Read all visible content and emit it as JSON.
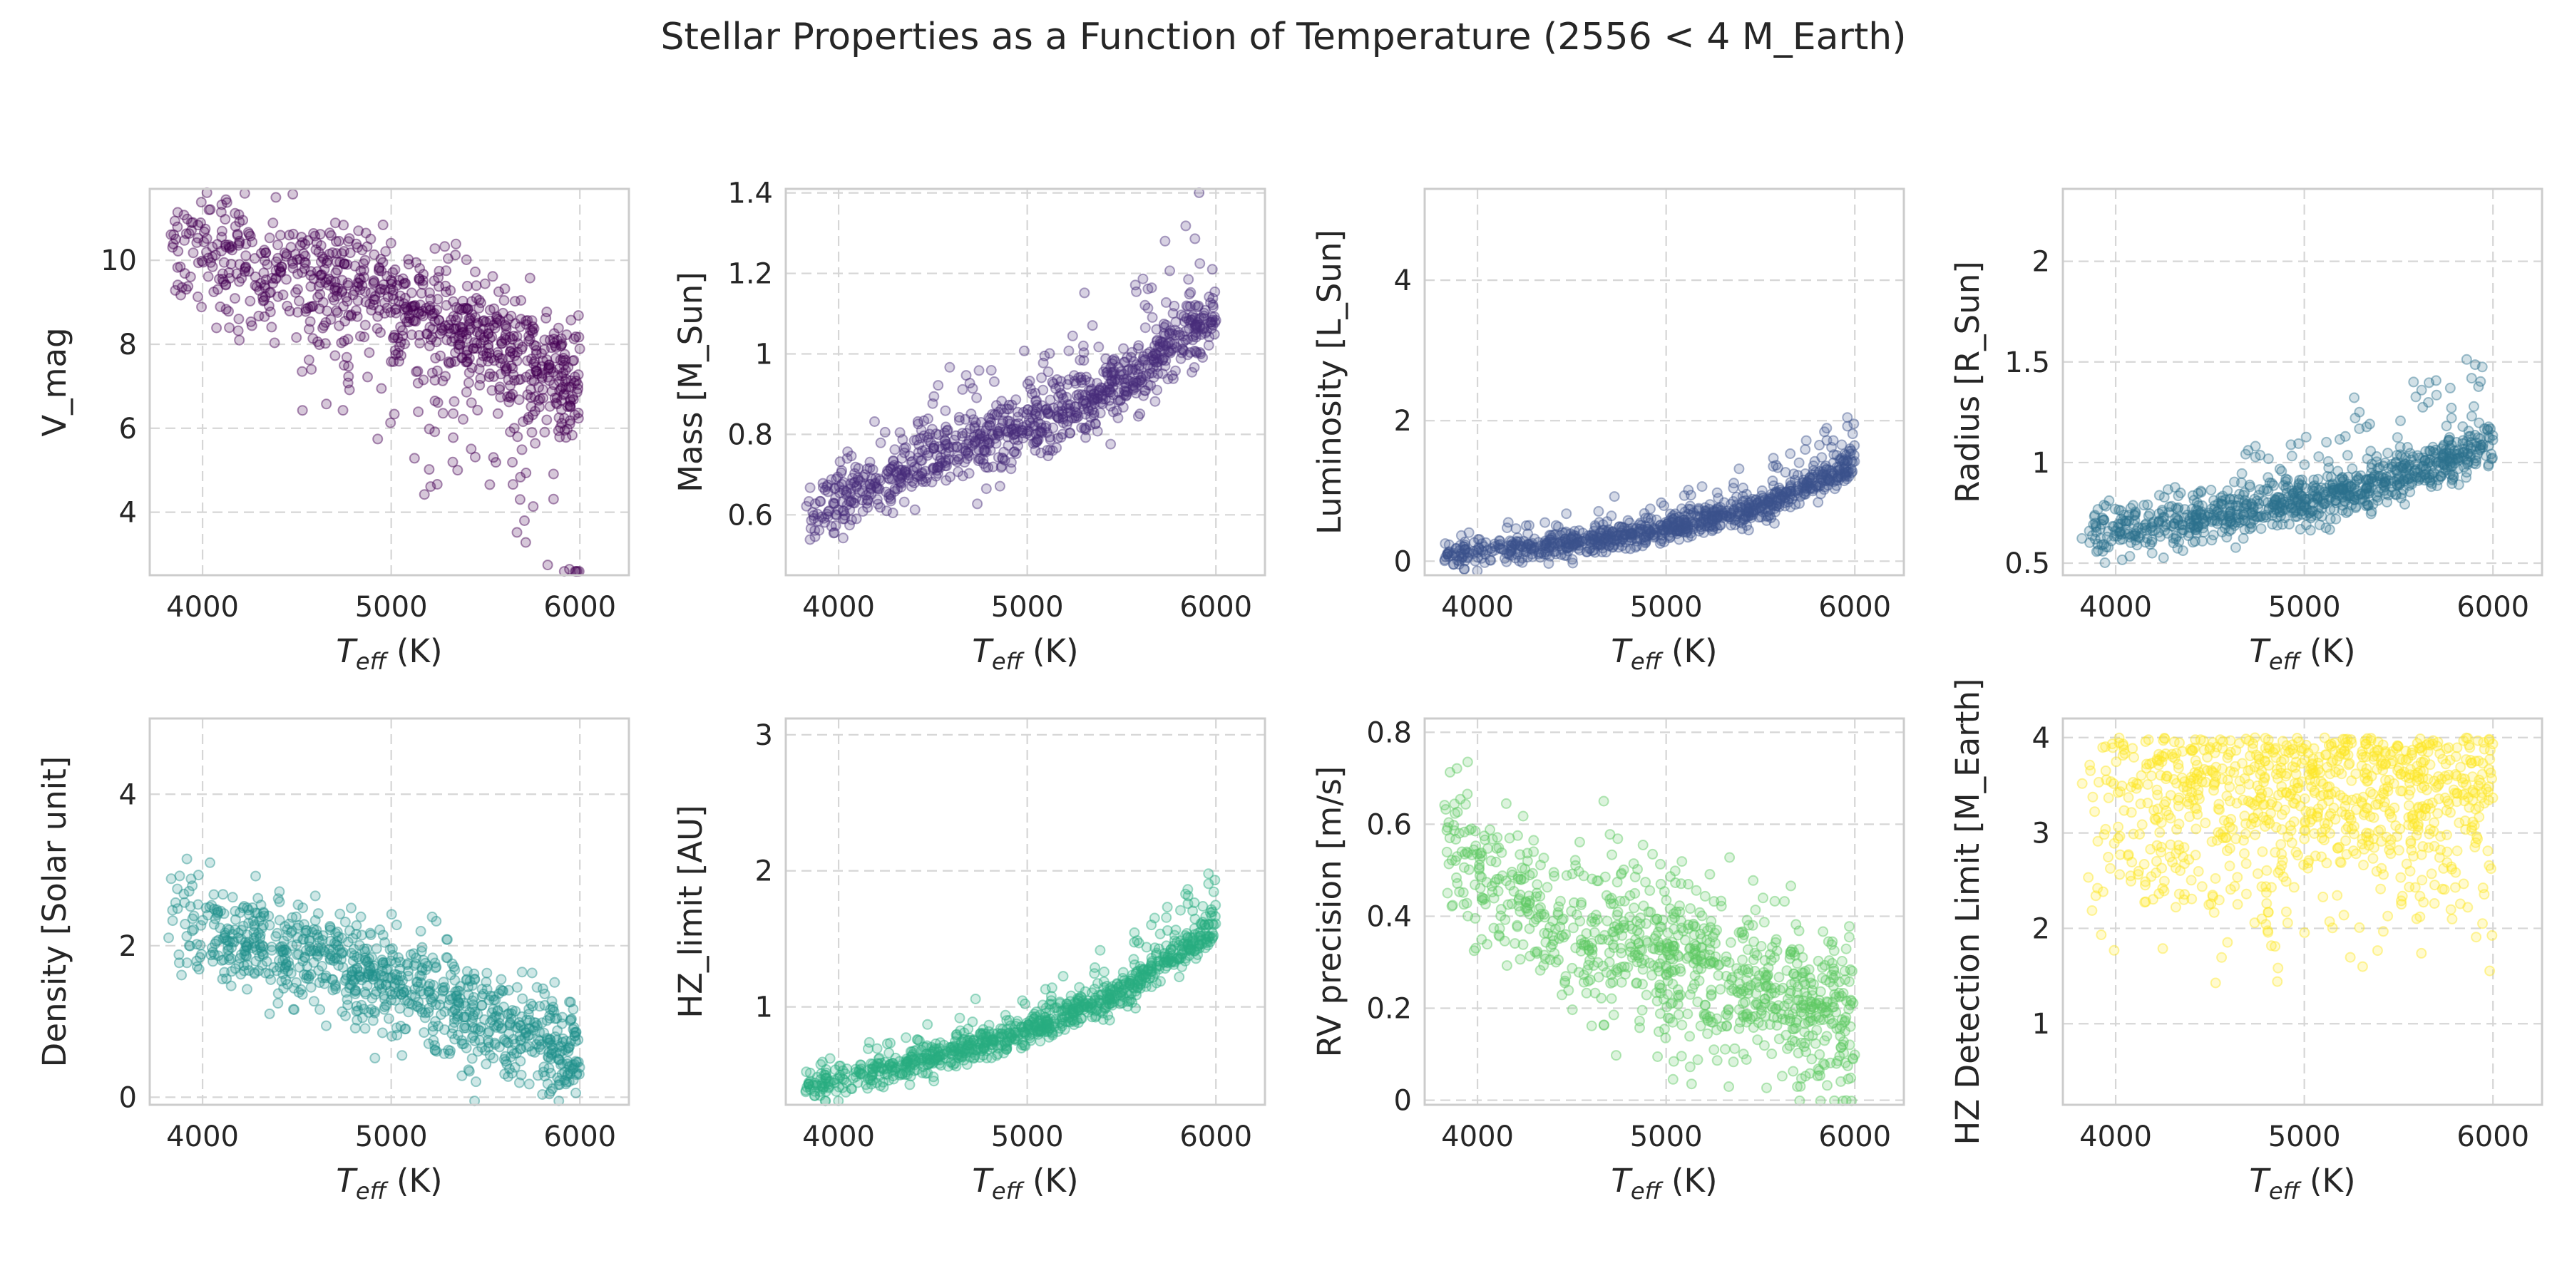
{
  "title": "Stellar Properties as a Function of Temperature (2556 < 4 M_Earth)",
  "chart_data": [
    {
      "type": "scatter",
      "xlabel": "T_eff (K)",
      "ylabel": "V_mag",
      "xlim": [
        3720,
        6260
      ],
      "ylim": [
        2.5,
        11.7
      ],
      "xticks": [
        4000,
        5000,
        6000
      ],
      "yticks": [
        4,
        6,
        8,
        10
      ],
      "color": "#440154",
      "trend": [
        [
          3820,
          10.6
        ],
        [
          4000,
          10.2
        ],
        [
          4500,
          9.7
        ],
        [
          5000,
          9.0
        ],
        [
          5500,
          8.2
        ],
        [
          6000,
          7.0
        ]
      ],
      "spread": 0.7,
      "outlier_dir": -1
    },
    {
      "type": "scatter",
      "xlabel": "T_eff (K)",
      "ylabel": "Mass [M_Sun]",
      "xlim": [
        3720,
        6260
      ],
      "ylim": [
        0.45,
        1.41
      ],
      "xticks": [
        4000,
        5000,
        6000
      ],
      "yticks": [
        0.6,
        0.8,
        1.0,
        1.2,
        1.4
      ],
      "color": "#472d7b",
      "trend": [
        [
          3820,
          0.58
        ],
        [
          4000,
          0.63
        ],
        [
          4500,
          0.74
        ],
        [
          5000,
          0.82
        ],
        [
          5500,
          0.92
        ],
        [
          6000,
          1.1
        ]
      ],
      "spread": 0.04,
      "outlier_dir": 1
    },
    {
      "type": "scatter",
      "xlabel": "T_eff (K)",
      "ylabel": "Luminosity [L_Sun]",
      "xlim": [
        3720,
        6260
      ],
      "ylim": [
        -0.2,
        5.3
      ],
      "xticks": [
        4000,
        5000,
        6000
      ],
      "yticks": [
        0,
        2,
        4
      ],
      "color": "#3b528b",
      "trend": [
        [
          3820,
          0.08
        ],
        [
          4000,
          0.12
        ],
        [
          4500,
          0.25
        ],
        [
          5000,
          0.45
        ],
        [
          5500,
          0.75
        ],
        [
          6000,
          1.4
        ]
      ],
      "spread": 0.1,
      "outlier_dir": 1
    },
    {
      "type": "scatter",
      "xlabel": "T_eff (K)",
      "ylabel": "Radius [R_Sun]",
      "xlim": [
        3720,
        6260
      ],
      "ylim": [
        0.44,
        2.36
      ],
      "xticks": [
        4000,
        5000,
        6000
      ],
      "yticks": [
        0.5,
        1.0,
        1.5,
        2.0
      ],
      "color": "#2c728e",
      "trend": [
        [
          3820,
          0.62
        ],
        [
          4000,
          0.65
        ],
        [
          4500,
          0.72
        ],
        [
          5000,
          0.8
        ],
        [
          5500,
          0.92
        ],
        [
          6000,
          1.1
        ]
      ],
      "spread": 0.06,
      "outlier_dir": 1
    },
    {
      "type": "scatter",
      "xlabel": "T_eff (K)",
      "ylabel": "Density [Solar unit]",
      "xlim": [
        3720,
        6260
      ],
      "ylim": [
        -0.1,
        5.0
      ],
      "xticks": [
        4000,
        5000,
        6000
      ],
      "yticks": [
        0,
        2,
        4
      ],
      "color": "#21918c",
      "trend": [
        [
          3820,
          2.5
        ],
        [
          4000,
          2.3
        ],
        [
          4500,
          1.9
        ],
        [
          5000,
          1.5
        ],
        [
          5500,
          1.0
        ],
        [
          6000,
          0.5
        ]
      ],
      "spread": 0.35,
      "outlier_dir": 0
    },
    {
      "type": "scatter",
      "xlabel": "T_eff (K)",
      "ylabel": "HZ_limit [AU]",
      "xlim": [
        3720,
        6260
      ],
      "ylim": [
        0.28,
        3.12
      ],
      "xticks": [
        4000,
        5000,
        6000
      ],
      "yticks": [
        1,
        2,
        3
      ],
      "color": "#27ad81",
      "trend": [
        [
          3820,
          0.42
        ],
        [
          4000,
          0.45
        ],
        [
          4500,
          0.62
        ],
        [
          5000,
          0.82
        ],
        [
          5500,
          1.1
        ],
        [
          6000,
          1.6
        ]
      ],
      "spread": 0.06,
      "outlier_dir": 1
    },
    {
      "type": "scatter",
      "xlabel": "T_eff (K)",
      "ylabel": "RV precision [m/s]",
      "xlim": [
        3720,
        6260
      ],
      "ylim": [
        -0.01,
        0.83
      ],
      "xticks": [
        4000,
        5000,
        6000
      ],
      "yticks": [
        0.0,
        0.2,
        0.4,
        0.6,
        0.8
      ],
      "color": "#5ec962",
      "trend": [
        [
          3820,
          0.58
        ],
        [
          4000,
          0.5
        ],
        [
          4500,
          0.38
        ],
        [
          5000,
          0.3
        ],
        [
          5500,
          0.24
        ],
        [
          6000,
          0.17
        ]
      ],
      "spread": 0.09,
      "outlier_dir": 0
    },
    {
      "type": "scatter",
      "xlabel": "T_eff (K)",
      "ylabel": "HZ Detection Limit [M_Earth]",
      "xlim": [
        3720,
        6260
      ],
      "ylim": [
        0.15,
        4.2
      ],
      "xticks": [
        4000,
        5000,
        6000
      ],
      "yticks": [
        1,
        2,
        3,
        4
      ],
      "color": "#fde725",
      "trend": [
        [
          3820,
          3.2
        ],
        [
          6000,
          3.2
        ]
      ],
      "spread": 0.8,
      "outlier_dir": 0
    }
  ]
}
